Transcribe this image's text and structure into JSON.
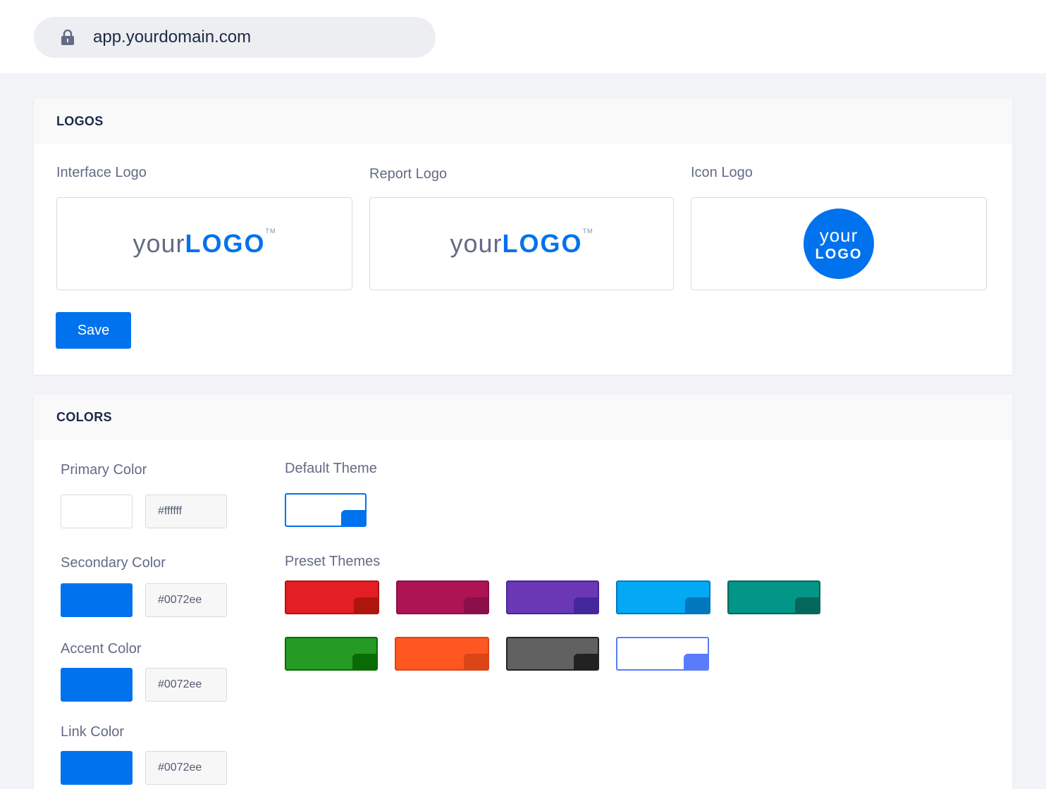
{
  "browser": {
    "url": "app.yourdomain.com",
    "icon": "lock-icon"
  },
  "logos": {
    "title": "LOGOS",
    "interface_label": "Interface Logo",
    "report_label": "Report Logo",
    "icon_label": "Icon Logo",
    "wordmark_a": "your",
    "wordmark_b": "LOGO",
    "tm": "TM",
    "icon_a": "your",
    "icon_b": "LOGO",
    "save": "Save"
  },
  "colors": {
    "title": "COLORS",
    "primary": {
      "label": "Primary Color",
      "value": "#ffffff"
    },
    "secondary": {
      "label": "Secondary Color",
      "value": "#0072ee"
    },
    "accent": {
      "label": "Accent Color",
      "value": "#0072ee"
    },
    "link": {
      "label": "Link Color",
      "value": "#0072ee"
    },
    "default_theme_label": "Default Theme",
    "default_theme": {
      "fill": "#ffffff",
      "corner": "#0072ee",
      "border": "#0072ee"
    },
    "preset_label": "Preset Themes",
    "presets": [
      {
        "fill": "#e31e24",
        "corner": "#b0140e",
        "border": "#b0140e"
      },
      {
        "fill": "#ad1453",
        "corner": "#8a0f4a",
        "border": "#8a0f4a"
      },
      {
        "fill": "#6a38b5",
        "corner": "#45279c",
        "border": "#45279c"
      },
      {
        "fill": "#03a9f4",
        "corner": "#0277bd",
        "border": "#0277bd"
      },
      {
        "fill": "#039587",
        "corner": "#03675b",
        "border": "#03675b"
      },
      {
        "fill": "#259a24",
        "corner": "#0a6b04",
        "border": "#0a6b04"
      },
      {
        "fill": "#ff5722",
        "corner": "#db4417",
        "border": "#db4417"
      },
      {
        "fill": "#616161",
        "corner": "#222222",
        "border": "#222222"
      },
      {
        "fill": "#ffffff",
        "corner": "#5a7cfa",
        "border": "#5a7cfa"
      }
    ]
  }
}
